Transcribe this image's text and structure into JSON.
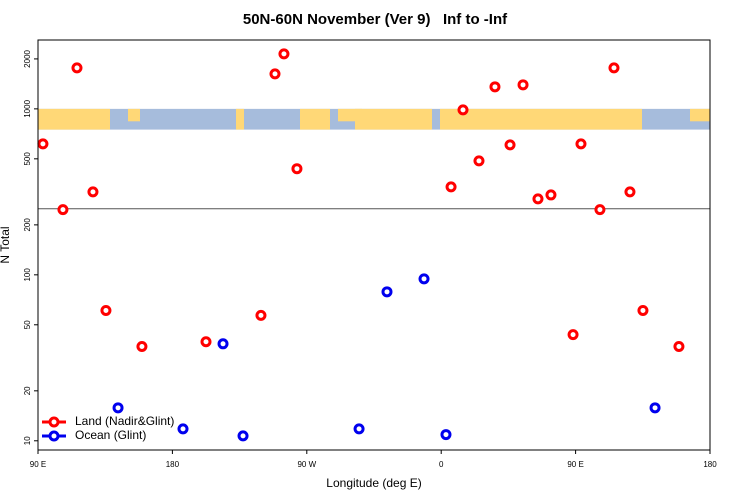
{
  "chart_data": {
    "type": "scatter",
    "title": "50N-60N November (Ver 9)   Inf to -Inf",
    "xlabel": "Longitude (deg E)",
    "ylabel": "N Total",
    "log_y": true,
    "xlim": [
      90,
      540
    ],
    "ylim": [
      8.8,
      2600
    ],
    "xticks": [
      {
        "value": 90,
        "label": "90 E"
      },
      180,
      {
        "value": 270,
        "label": "90 W"
      },
      {
        "value": 360,
        "label": "0"
      },
      {
        "value": 450,
        "label": "90 E"
      },
      {
        "value": 540,
        "label": "180"
      }
    ],
    "yticks": [
      10,
      20,
      50,
      100,
      200,
      500,
      1000,
      2000
    ],
    "reference_line": 250,
    "map_band": [
      750,
      1000
    ],
    "legend": "bottom-left",
    "series": [
      {
        "name": "Land (Nadir&Glint)",
        "color": "#ff0000",
        "x": [
          93.3,
          106.7,
          116.1,
          126.8,
          135.5,
          159.6,
          202.5,
          239.3,
          248.7,
          254.7,
          263.4,
          366.6,
          374.6,
          385.3,
          396,
          406.1,
          414.8,
          424.8,
          433.5,
          448.3,
          453.6,
          466.3,
          475.7,
          486.4,
          495.1,
          519.2
        ],
        "values": [
          615,
          247,
          1766,
          316,
          61,
          37,
          39.5,
          57,
          1625,
          2145,
          436,
          339,
          986,
          486,
          1358,
          607,
          1396,
          287,
          303,
          43.6,
          615,
          247,
          1766,
          316,
          61,
          37
        ]
      },
      {
        "name": "Ocean (Glint)",
        "color": "#0000ee",
        "x": [
          143.6,
          187.1,
          213.9,
          227.3,
          305,
          323.7,
          348.5,
          363.2,
          503.2
        ],
        "values": [
          15.8,
          11.8,
          38.4,
          10.7,
          11.8,
          79,
          94.6,
          10.9,
          15.8
        ]
      }
    ]
  }
}
